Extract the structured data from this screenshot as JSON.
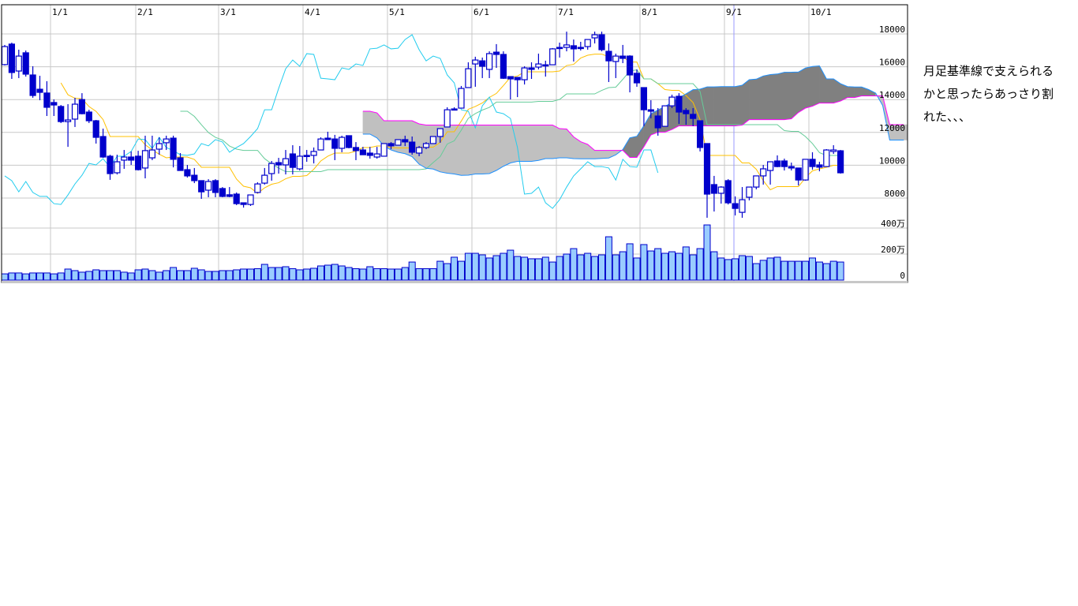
{
  "chart_data": {
    "type": "candlestick",
    "indicator": "ichimoku",
    "x_tick_labels": [
      "1/1",
      "2/1",
      "3/1",
      "4/1",
      "5/1",
      "6/1",
      "7/1",
      "8/1",
      "9/1",
      "10/1"
    ],
    "price_ticks": [
      8000,
      10000,
      12000,
      14000,
      16000,
      18000
    ],
    "price_tick_labels": [
      "8000",
      "10000",
      "12000",
      "14000",
      "16000",
      "18000"
    ],
    "volume_ticks": [
      0,
      200,
      400
    ],
    "volume_tick_labels": [
      "0",
      "200万",
      "400万"
    ],
    "volume_unit": "万",
    "grid": true,
    "colors": {
      "candle": "#0000cc",
      "volume_fill": "#99ccff",
      "tenkan": "#ffc000",
      "kijun": "#66cc99",
      "chikou": "#22ccee",
      "span_a": "#1e90ff",
      "span_b": "#ff00ff",
      "cloud_bull": "#808080",
      "cloud_bear": "#c0c0c0",
      "grid": "#c8c8c8",
      "cursor": "#9999ff"
    },
    "ohlc": [
      [
        16130,
        17330,
        16080,
        17230
      ],
      [
        17380,
        17470,
        15260,
        15650
      ],
      [
        15740,
        17040,
        15310,
        16650
      ],
      [
        16850,
        16990,
        15400,
        15550
      ],
      [
        15500,
        16030,
        14110,
        14250
      ],
      [
        14630,
        15450,
        13960,
        14440
      ],
      [
        14400,
        15120,
        13000,
        13530
      ],
      [
        13820,
        14010,
        13000,
        13670
      ],
      [
        13580,
        13670,
        12570,
        12660
      ],
      [
        12660,
        13720,
        11120,
        12760
      ],
      [
        12810,
        14110,
        12330,
        13720
      ],
      [
        14000,
        14390,
        13100,
        13140
      ],
      [
        13240,
        13380,
        12570,
        12710
      ],
      [
        12710,
        12760,
        11320,
        11700
      ],
      [
        11750,
        12230,
        10450,
        10500
      ],
      [
        10550,
        10640,
        9110,
        9490
      ],
      [
        9540,
        10640,
        9440,
        10210
      ],
      [
        10310,
        10930,
        9780,
        10500
      ],
      [
        10500,
        10840,
        10020,
        10310
      ],
      [
        10550,
        10880,
        9680,
        9730
      ],
      [
        9830,
        11800,
        9200,
        10890
      ],
      [
        10450,
        11800,
        10310,
        10930
      ],
      [
        10980,
        11700,
        10640,
        11320
      ],
      [
        11370,
        11800,
        10930,
        11600
      ],
      [
        11650,
        11800,
        9870,
        10360
      ],
      [
        10450,
        10740,
        9680,
        9680
      ],
      [
        9730,
        10020,
        9250,
        9350
      ],
      [
        9390,
        9830,
        8910,
        9060
      ],
      [
        9060,
        9060,
        7950,
        8380
      ],
      [
        8480,
        9150,
        8050,
        9010
      ],
      [
        9060,
        9150,
        8050,
        8340
      ],
      [
        8580,
        8670,
        8050,
        8100
      ],
      [
        8200,
        8670,
        8050,
        8100
      ],
      [
        8240,
        8340,
        7570,
        7660
      ],
      [
        7710,
        7710,
        7420,
        7610
      ],
      [
        7610,
        8190,
        7520,
        8190
      ],
      [
        8340,
        8960,
        8290,
        8860
      ],
      [
        8910,
        9830,
        8820,
        9390
      ],
      [
        9490,
        10260,
        9060,
        10110
      ],
      [
        10160,
        10450,
        9490,
        10020
      ],
      [
        10020,
        10930,
        9440,
        10400
      ],
      [
        10690,
        11220,
        9440,
        9870
      ],
      [
        9780,
        11170,
        9680,
        10550
      ],
      [
        10600,
        10930,
        10210,
        10550
      ],
      [
        10600,
        11080,
        10110,
        10840
      ],
      [
        10930,
        11700,
        10930,
        11600
      ],
      [
        11650,
        12040,
        11560,
        11560
      ],
      [
        11600,
        11850,
        10310,
        11030
      ],
      [
        11030,
        11800,
        10790,
        11700
      ],
      [
        11800,
        11800,
        11030,
        11080
      ],
      [
        11080,
        11410,
        10310,
        10890
      ],
      [
        10930,
        11120,
        10640,
        10640
      ],
      [
        10740,
        11120,
        10400,
        10600
      ],
      [
        10500,
        11120,
        10400,
        10690
      ],
      [
        10550,
        11320,
        10550,
        11320
      ],
      [
        11320,
        11410,
        10980,
        11180
      ],
      [
        11220,
        11560,
        11220,
        11560
      ],
      [
        11560,
        11800,
        11170,
        11420
      ],
      [
        11410,
        11750,
        10640,
        10790
      ],
      [
        10740,
        11170,
        10550,
        11080
      ],
      [
        11080,
        11410,
        10980,
        11320
      ],
      [
        11320,
        11750,
        11320,
        11750
      ],
      [
        11750,
        12230,
        11370,
        12230
      ],
      [
        12330,
        13530,
        12330,
        13380
      ],
      [
        13430,
        13530,
        13340,
        13380
      ],
      [
        13480,
        14830,
        13480,
        14680
      ],
      [
        14730,
        16270,
        14730,
        15880
      ],
      [
        16170,
        16610,
        14780,
        16410
      ],
      [
        16360,
        16560,
        15310,
        16030
      ],
      [
        15840,
        16940,
        15310,
        16800
      ],
      [
        16890,
        17380,
        15930,
        16750
      ],
      [
        16750,
        16940,
        15260,
        15300
      ],
      [
        15400,
        15400,
        14010,
        15260
      ],
      [
        15350,
        15360,
        14150,
        15210
      ],
      [
        15210,
        16030,
        14920,
        15930
      ],
      [
        15930,
        16270,
        15260,
        15840
      ],
      [
        15980,
        16800,
        15840,
        16170
      ],
      [
        16120,
        16370,
        15400,
        16080
      ],
      [
        16120,
        17140,
        16120,
        17090
      ],
      [
        17180,
        17470,
        16560,
        17130
      ],
      [
        17180,
        18140,
        16940,
        17330
      ],
      [
        17280,
        17660,
        16320,
        17090
      ],
      [
        17180,
        17520,
        16990,
        17130
      ],
      [
        17230,
        17660,
        17040,
        17660
      ],
      [
        17760,
        18140,
        17420,
        17950
      ],
      [
        17950,
        18140,
        16940,
        17040
      ],
      [
        16940,
        17420,
        15070,
        16360
      ],
      [
        16320,
        16800,
        15310,
        16650
      ],
      [
        16650,
        17330,
        16220,
        16510
      ],
      [
        16650,
        16700,
        14440,
        15500
      ],
      [
        15600,
        15840,
        14780,
        15020
      ],
      [
        14730,
        14730,
        12380,
        13380
      ],
      [
        13380,
        13960,
        12860,
        13290
      ],
      [
        13000,
        13480,
        11800,
        12280
      ],
      [
        12370,
        13630,
        12370,
        13620
      ],
      [
        13620,
        14300,
        13480,
        14150
      ],
      [
        14200,
        14390,
        12520,
        13240
      ],
      [
        13340,
        13480,
        12470,
        13140
      ],
      [
        13100,
        13480,
        12380,
        12850
      ],
      [
        12710,
        12710,
        10840,
        11080
      ],
      [
        11320,
        11320,
        6800,
        8240
      ],
      [
        8820,
        9350,
        7180,
        8290
      ],
      [
        8290,
        8720,
        7660,
        8670
      ],
      [
        9060,
        9150,
        7610,
        7710
      ],
      [
        7660,
        8100,
        6940,
        7370
      ],
      [
        7130,
        8670,
        6800,
        7900
      ],
      [
        8050,
        8670,
        7860,
        8670
      ],
      [
        8670,
        9350,
        8530,
        9350
      ],
      [
        9350,
        10020,
        8820,
        9780
      ],
      [
        9680,
        10210,
        8820,
        10210
      ],
      [
        10260,
        10600,
        9880,
        9920
      ],
      [
        10260,
        10400,
        9680,
        9920
      ],
      [
        9920,
        10160,
        9680,
        9830
      ],
      [
        9830,
        9830,
        8770,
        9100
      ],
      [
        9100,
        10360,
        9060,
        10360
      ],
      [
        10360,
        10790,
        9730,
        9920
      ],
      [
        10020,
        10210,
        9630,
        9880
      ],
      [
        9920,
        10980,
        9920,
        10930
      ],
      [
        10840,
        11220,
        10690,
        10930
      ],
      [
        10880,
        10930,
        9490,
        9540
      ]
    ],
    "volume": [
      48,
      55,
      55,
      48,
      55,
      55,
      55,
      48,
      55,
      85,
      73,
      61,
      67,
      79,
      73,
      73,
      73,
      61,
      55,
      79,
      85,
      73,
      61,
      73,
      97,
      73,
      73,
      91,
      79,
      67,
      67,
      73,
      73,
      79,
      85,
      85,
      88,
      121,
      97,
      97,
      103,
      88,
      79,
      85,
      91,
      109,
      115,
      121,
      109,
      97,
      88,
      85,
      103,
      88,
      88,
      85,
      85,
      97,
      139,
      88,
      88,
      88,
      145,
      127,
      176,
      145,
      206,
      206,
      194,
      170,
      188,
      206,
      230,
      182,
      176,
      164,
      164,
      176,
      139,
      182,
      200,
      242,
      194,
      206,
      182,
      194,
      333,
      194,
      218,
      279,
      170,
      273,
      224,
      242,
      206,
      218,
      206,
      255,
      194,
      242,
      424,
      218,
      170,
      158,
      164,
      188,
      182,
      127,
      152,
      170,
      176,
      145,
      145,
      145,
      145,
      170,
      139,
      127,
      145,
      139
    ]
  },
  "comment": {
    "lines": [
      "月足基準線で支えられる",
      "かと思ったらあっさり割",
      "れた、、、"
    ]
  }
}
